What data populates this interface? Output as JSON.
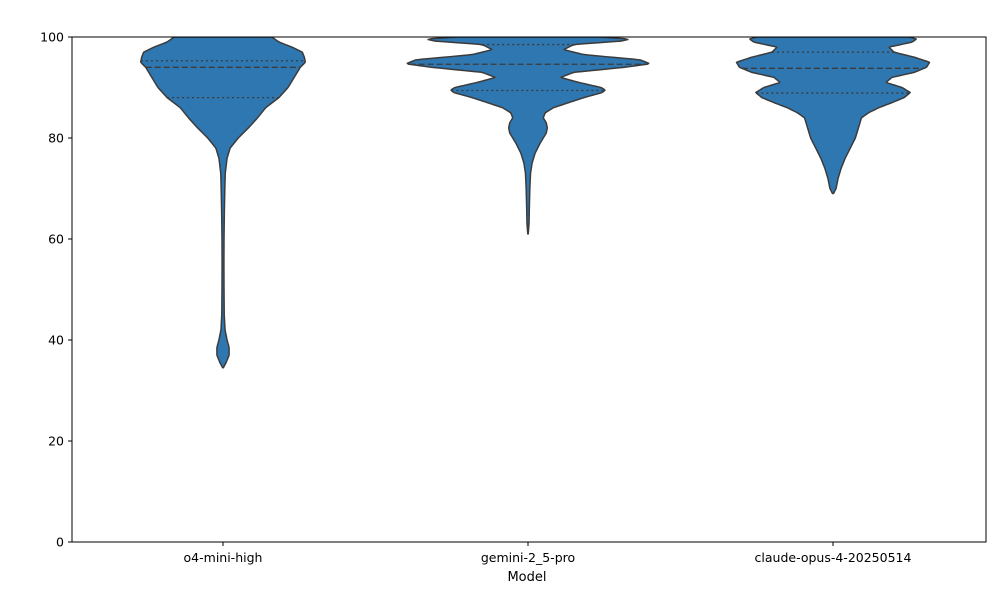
{
  "chart_data": {
    "type": "violin",
    "title": "",
    "xlabel": "Model",
    "ylabel": "",
    "ylim": [
      0,
      100
    ],
    "yticks": [
      0,
      20,
      40,
      60,
      80,
      100
    ],
    "grid": false,
    "fill_color": "#2f77b1",
    "edge_color": "#3b3b3b",
    "categories": [
      "o4-mini-high",
      "gemini-2_5-pro",
      "claude-opus-4-20250514"
    ],
    "violins": [
      {
        "name": "o4-mini-high",
        "min": 34.5,
        "quartiles": {
          "q1": 88.0,
          "median": 94.0,
          "q3": 95.3
        },
        "profile": [
          [
            34.5,
            0.3
          ],
          [
            35.5,
            3
          ],
          [
            37,
            6
          ],
          [
            38.5,
            6
          ],
          [
            40,
            4
          ],
          [
            42,
            2
          ],
          [
            45,
            1.2
          ],
          [
            50,
            1
          ],
          [
            55,
            0.9
          ],
          [
            60,
            1
          ],
          [
            65,
            1.3
          ],
          [
            70,
            1.8
          ],
          [
            73,
            2.2
          ],
          [
            76,
            4
          ],
          [
            78,
            7
          ],
          [
            80,
            15
          ],
          [
            82,
            25
          ],
          [
            84,
            34
          ],
          [
            86,
            42
          ],
          [
            88,
            55
          ],
          [
            90,
            64
          ],
          [
            92,
            70
          ],
          [
            94,
            76
          ],
          [
            95,
            81
          ],
          [
            96,
            80
          ],
          [
            97,
            78
          ],
          [
            98,
            68
          ],
          [
            99,
            55
          ],
          [
            100,
            48
          ]
        ]
      },
      {
        "name": "gemini-2_5-pro",
        "min": 61.0,
        "quartiles": {
          "q1": 89.4,
          "median": 94.6,
          "q3": 98.5
        },
        "profile": [
          [
            61,
            0.2
          ],
          [
            63,
            1
          ],
          [
            66,
            1.3
          ],
          [
            70,
            1.8
          ],
          [
            73,
            2.5
          ],
          [
            75,
            4
          ],
          [
            77,
            7
          ],
          [
            79,
            12
          ],
          [
            81,
            18
          ],
          [
            82,
            19
          ],
          [
            83,
            18
          ],
          [
            84,
            15
          ],
          [
            85,
            17
          ],
          [
            86,
            25
          ],
          [
            87,
            40
          ],
          [
            88,
            55
          ],
          [
            89,
            73
          ],
          [
            89.5,
            76
          ],
          [
            90,
            72
          ],
          [
            91,
            50
          ],
          [
            92,
            32
          ],
          [
            93,
            45
          ],
          [
            94,
            95
          ],
          [
            94.7,
            120
          ],
          [
            95.5,
            110
          ],
          [
            96.5,
            55
          ],
          [
            97.5,
            35
          ],
          [
            98.5,
            45
          ],
          [
            99.2,
            92
          ],
          [
            99.6,
            100
          ],
          [
            100,
            70
          ]
        ]
      },
      {
        "name": "claude-opus-4-20250514",
        "min": 69.0,
        "quartiles": {
          "q1": 88.9,
          "median": 93.8,
          "q3": 97.0
        },
        "profile": [
          [
            69,
            0.5
          ],
          [
            70,
            3
          ],
          [
            72,
            5
          ],
          [
            74,
            8
          ],
          [
            76,
            12
          ],
          [
            78,
            17
          ],
          [
            80,
            22
          ],
          [
            82,
            25
          ],
          [
            84,
            28
          ],
          [
            85,
            35
          ],
          [
            86,
            45
          ],
          [
            87,
            58
          ],
          [
            88,
            70
          ],
          [
            89,
            76
          ],
          [
            90,
            68
          ],
          [
            91,
            52
          ],
          [
            92,
            58
          ],
          [
            93,
            80
          ],
          [
            94,
            92
          ],
          [
            95,
            95
          ],
          [
            96,
            80
          ],
          [
            97,
            60
          ],
          [
            98,
            55
          ],
          [
            99,
            78
          ],
          [
            99.6,
            82
          ],
          [
            100,
            75
          ]
        ]
      }
    ]
  }
}
